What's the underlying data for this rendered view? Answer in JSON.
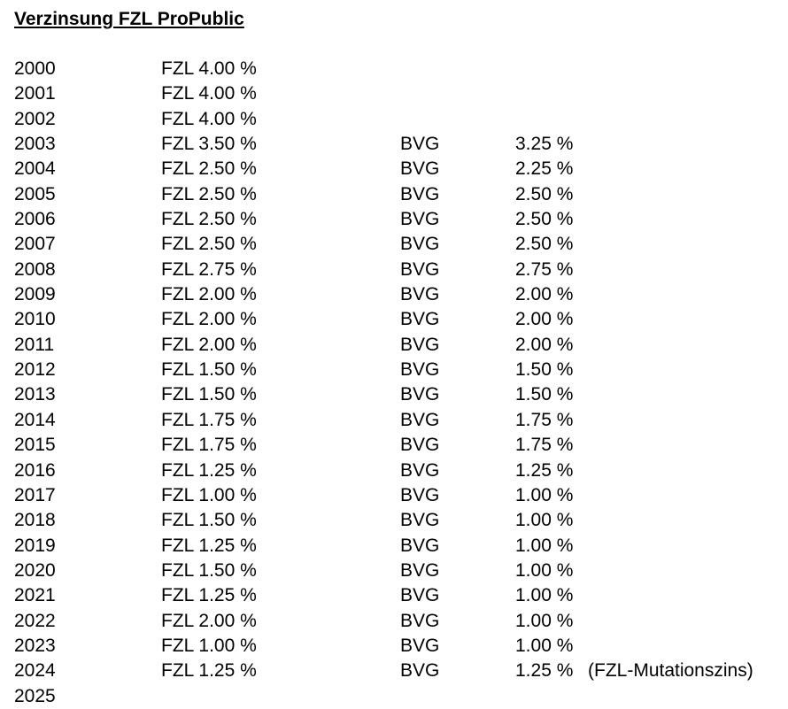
{
  "title": "Verzinsung FZL ProPublic",
  "rows": [
    {
      "year": "2000",
      "fzl": "FZL 4.00 %",
      "bvg": "",
      "bvg_rate": "",
      "note": ""
    },
    {
      "year": "2001",
      "fzl": "FZL 4.00 %",
      "bvg": "",
      "bvg_rate": "",
      "note": ""
    },
    {
      "year": "2002",
      "fzl": "FZL 4.00 %",
      "bvg": "",
      "bvg_rate": "",
      "note": ""
    },
    {
      "year": "2003",
      "fzl": "FZL 3.50 %",
      "bvg": "BVG",
      "bvg_rate": "3.25 %",
      "note": ""
    },
    {
      "year": "2004",
      "fzl": "FZL 2.50 %",
      "bvg": "BVG",
      "bvg_rate": "2.25 %",
      "note": ""
    },
    {
      "year": "2005",
      "fzl": "FZL 2.50 %",
      "bvg": "BVG",
      "bvg_rate": "2.50 %",
      "note": ""
    },
    {
      "year": "2006",
      "fzl": "FZL 2.50 %",
      "bvg": "BVG",
      "bvg_rate": "2.50 %",
      "note": ""
    },
    {
      "year": "2007",
      "fzl": "FZL 2.50 %",
      "bvg": "BVG",
      "bvg_rate": "2.50 %",
      "note": ""
    },
    {
      "year": "2008",
      "fzl": "FZL 2.75 %",
      "bvg": "BVG",
      "bvg_rate": "2.75 %",
      "note": ""
    },
    {
      "year": "2009",
      "fzl": "FZL 2.00 %",
      "bvg": "BVG",
      "bvg_rate": "2.00 %",
      "note": ""
    },
    {
      "year": "2010",
      "fzl": "FZL 2.00 %",
      "bvg": "BVG",
      "bvg_rate": "2.00 %",
      "note": ""
    },
    {
      "year": "2011",
      "fzl": "FZL 2.00 %",
      "bvg": "BVG",
      "bvg_rate": "2.00 %",
      "note": ""
    },
    {
      "year": "2012",
      "fzl": "FZL 1.50 %",
      "bvg": "BVG",
      "bvg_rate": "1.50 %",
      "note": ""
    },
    {
      "year": "2013",
      "fzl": "FZL 1.50 %",
      "bvg": "BVG",
      "bvg_rate": "1.50 %",
      "note": ""
    },
    {
      "year": "2014",
      "fzl": "FZL 1.75 %",
      "bvg": "BVG",
      "bvg_rate": "1.75 %",
      "note": ""
    },
    {
      "year": "2015",
      "fzl": "FZL 1.75 %",
      "bvg": "BVG",
      "bvg_rate": "1.75 %",
      "note": ""
    },
    {
      "year": "2016",
      "fzl": "FZL 1.25 %",
      "bvg": "BVG",
      "bvg_rate": "1.25 %",
      "note": ""
    },
    {
      "year": "2017",
      "fzl": "FZL 1.00 %",
      "bvg": "BVG",
      "bvg_rate": "1.00 %",
      "note": ""
    },
    {
      "year": "2018",
      "fzl": "FZL 1.50 %",
      "bvg": "BVG",
      "bvg_rate": "1.00 %",
      "note": ""
    },
    {
      "year": "2019",
      "fzl": "FZL 1.25 %",
      "bvg": "BVG",
      "bvg_rate": "1.00 %",
      "note": ""
    },
    {
      "year": "2020",
      "fzl": "FZL 1.50 %",
      "bvg": "BVG",
      "bvg_rate": "1.00 %",
      "note": ""
    },
    {
      "year": "2021",
      "fzl": "FZL 1.25 %",
      "bvg": "BVG",
      "bvg_rate": "1.00 %",
      "note": ""
    },
    {
      "year": "2022",
      "fzl": "FZL 2.00 %",
      "bvg": "BVG",
      "bvg_rate": "1.00 %",
      "note": ""
    },
    {
      "year": "2023",
      "fzl": "FZL 1.00 %",
      "bvg": "BVG",
      "bvg_rate": "1.00 %",
      "note": ""
    },
    {
      "year": "2024",
      "fzl": "FZL 1.25 %",
      "bvg": "BVG",
      "bvg_rate": "1.25 %",
      "note": "(FZL-Mutationszins)"
    },
    {
      "year": "2025",
      "fzl": "",
      "bvg": "",
      "bvg_rate": "",
      "note": ""
    }
  ]
}
